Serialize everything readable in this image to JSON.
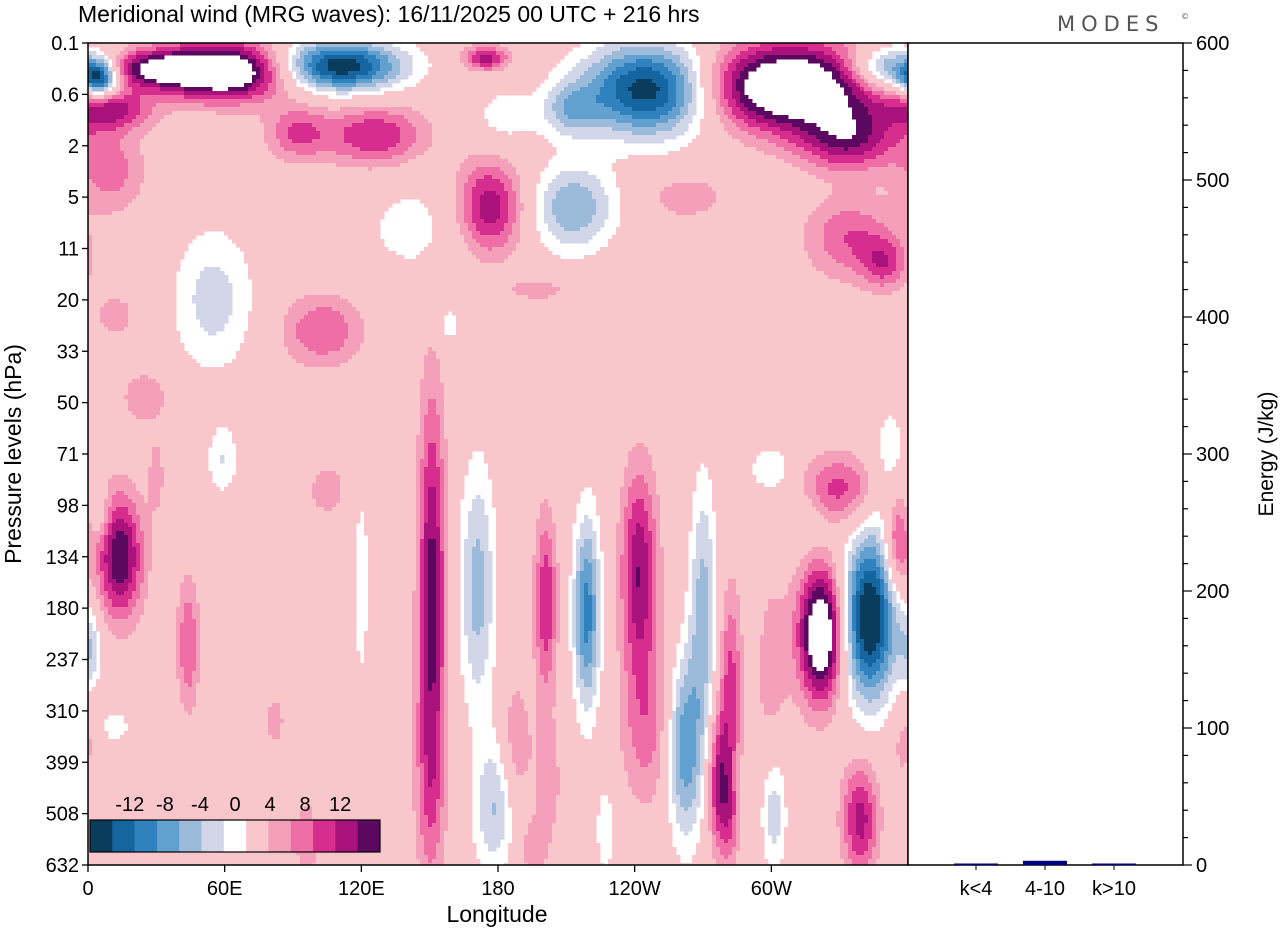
{
  "chart_data": {
    "type": "heatmap",
    "title": "Meridional wind (MRG waves):  16/11/2025  00 UTC  + 216 hrs",
    "logo": "MODES",
    "logo_mark": "©",
    "xlabel": "Longitude",
    "ylabel": "Pressure levels (hPa)",
    "x_ticks": [
      "0",
      "60E",
      "120E",
      "180",
      "120W",
      "60W"
    ],
    "x_tick_values": [
      0,
      60,
      120,
      180,
      240,
      300
    ],
    "xlim": [
      0,
      360
    ],
    "y_ticks": [
      "0.1",
      "0.6",
      "2",
      "5",
      "11",
      "20",
      "33",
      "50",
      "71",
      "98",
      "134",
      "180",
      "237",
      "310",
      "399",
      "508",
      "632"
    ],
    "colorbar": {
      "labels": [
        "-12",
        "-8",
        "-4",
        "0",
        "4",
        "8",
        "12"
      ],
      "label_values": [
        -12,
        -8,
        -4,
        0,
        4,
        8,
        12
      ],
      "levels": [
        -14,
        -12,
        -10,
        -8,
        -6,
        -4,
        -2,
        2,
        4,
        6,
        8,
        10,
        12,
        14
      ],
      "colors": [
        "#0b3c5d",
        "#1565a0",
        "#3082be",
        "#62a0cf",
        "#9cbad9",
        "#d1d6e9",
        "#ffffff",
        "#f9c7cb",
        "#f4a0ba",
        "#ef6ea6",
        "#d62d8e",
        "#a8127a",
        "#5b0860"
      ]
    },
    "energy_axis": {
      "ylabel": "Energy (J/kg)",
      "ylim": [
        0,
        600
      ],
      "ticks": [
        0,
        100,
        200,
        300,
        400,
        500,
        600
      ],
      "categories": [
        "k<4",
        "4-10",
        "k>10"
      ],
      "values": [
        0,
        2,
        0
      ],
      "bar_color": "#000080"
    },
    "blobs": [
      {
        "lon": 5,
        "lev": 0.7,
        "rlon": 8,
        "rlev": 0.35,
        "amp": -14
      },
      {
        "lon": 28,
        "lev": 0.5,
        "rlon": 20,
        "rlev": 0.35,
        "amp": 10
      },
      {
        "lon": 60,
        "lev": 0.55,
        "rlon": 28,
        "rlev": 0.55,
        "amp": 18
      },
      {
        "lon": 110,
        "lev": 0.45,
        "rlon": 28,
        "rlev": 0.5,
        "amp": -16
      },
      {
        "lon": 175,
        "lev": 0.3,
        "rlon": 10,
        "rlev": 0.25,
        "amp": 9
      },
      {
        "lon": 248,
        "lev": 0.9,
        "rlon": 30,
        "rlev": 0.9,
        "amp": -17
      },
      {
        "lon": 307,
        "lev": 0.85,
        "rlon": 42,
        "rlev": 0.85,
        "amp": 18
      },
      {
        "lon": 352,
        "lev": 0.5,
        "rlon": 18,
        "rlev": 0.45,
        "amp": -12
      },
      {
        "lon": 10,
        "lev": 1.3,
        "rlon": 18,
        "rlev": 0.4,
        "amp": 8
      },
      {
        "lon": 92,
        "lev": 1.75,
        "rlon": 14,
        "rlev": 0.55,
        "amp": 6
      },
      {
        "lon": 126,
        "lev": 1.8,
        "rlon": 22,
        "rlev": 0.6,
        "amp": 8
      },
      {
        "lon": 212,
        "lev": 1.3,
        "rlon": 12,
        "rlev": 0.5,
        "amp": -6
      },
      {
        "lon": 182,
        "lev": 1.5,
        "rlon": 15,
        "rlev": 0.7,
        "amp": -3
      },
      {
        "lon": 334,
        "lev": 1.9,
        "rlon": 22,
        "rlev": 0.6,
        "amp": 9
      },
      {
        "lon": 10,
        "lev": 2.5,
        "rlon": 15,
        "rlev": 0.8,
        "amp": 5
      },
      {
        "lon": 176,
        "lev": 3.2,
        "rlon": 15,
        "rlev": 0.95,
        "amp": 10
      },
      {
        "lon": 213,
        "lev": 3.2,
        "rlon": 18,
        "rlev": 0.85,
        "amp": -8
      },
      {
        "lon": 263,
        "lev": 3.0,
        "rlon": 15,
        "rlev": 0.4,
        "amp": 4
      },
      {
        "lon": 146,
        "lev": 3.6,
        "rlon": 28,
        "rlev": 1.0,
        "amp": -3
      },
      {
        "lon": 335,
        "lev": 3.8,
        "rlon": 20,
        "rlev": 0.8,
        "amp": 6
      },
      {
        "lon": 350,
        "lev": 4.3,
        "rlon": 10,
        "rlev": 0.5,
        "amp": 6
      },
      {
        "lon": 55,
        "lev": 5.0,
        "rlon": 18,
        "rlev": 1.4,
        "amp": -5
      },
      {
        "lon": 103,
        "lev": 5.6,
        "rlon": 18,
        "rlev": 0.7,
        "amp": 6
      },
      {
        "lon": 12,
        "lev": 5.3,
        "rlon": 10,
        "rlev": 0.5,
        "amp": 3
      },
      {
        "lon": 198,
        "lev": 4.8,
        "rlon": 16,
        "rlev": 0.25,
        "amp": 3
      },
      {
        "lon": 158,
        "lev": 5.5,
        "rlon": 6,
        "rlev": 0.45,
        "amp": -3
      },
      {
        "lon": 25,
        "lev": 6.9,
        "rlon": 10,
        "rlev": 0.5,
        "amp": 4
      },
      {
        "lon": 59,
        "lev": 8.1,
        "rlon": 7,
        "rlev": 0.7,
        "amp": -4
      },
      {
        "lon": 105,
        "lev": 8.7,
        "rlon": 10,
        "rlev": 0.6,
        "amp": 3
      },
      {
        "lon": 5,
        "lev": 9.2,
        "rlon": 5,
        "rlev": 0.5,
        "amp": -3
      },
      {
        "lon": 14,
        "lev": 10.0,
        "rlon": 10,
        "rlev": 1.2,
        "amp": 12
      },
      {
        "lon": 30,
        "lev": 8.4,
        "rlon": 4,
        "rlev": 0.8,
        "amp": 3
      },
      {
        "lon": 44,
        "lev": 11.7,
        "rlon": 5,
        "rlev": 1.3,
        "amp": 6
      },
      {
        "lon": 82,
        "lev": 13.2,
        "rlon": 5,
        "rlev": 0.6,
        "amp": 3
      },
      {
        "lon": 151,
        "lev": 10.7,
        "rlon": 6,
        "rlev": 3.8,
        "amp": 11
      },
      {
        "lon": 150,
        "lev": 14.5,
        "rlon": 7,
        "rlev": 2.0,
        "amp": 4
      },
      {
        "lon": 120,
        "lev": 10.5,
        "rlon": 4,
        "rlev": 2.5,
        "amp": -3
      },
      {
        "lon": 171,
        "lev": 10.6,
        "rlon": 8,
        "rlev": 2.4,
        "amp": -7
      },
      {
        "lon": 178,
        "lev": 14.9,
        "rlon": 9,
        "rlev": 1.3,
        "amp": -6
      },
      {
        "lon": 188,
        "lev": 13.6,
        "rlon": 6,
        "rlev": 1.2,
        "amp": 4
      },
      {
        "lon": 201,
        "lev": 10.9,
        "rlon": 5,
        "rlev": 1.7,
        "amp": 8
      },
      {
        "lon": 219,
        "lev": 11.1,
        "rlon": 6,
        "rlev": 1.9,
        "amp": -11
      },
      {
        "lon": 202,
        "lev": 14.4,
        "rlon": 7,
        "rlev": 1.4,
        "amp": 3
      },
      {
        "lon": 242,
        "lev": 10.3,
        "rlon": 8,
        "rlev": 2.0,
        "amp": 10
      },
      {
        "lon": 246,
        "lev": 13.3,
        "rlon": 12,
        "rlev": 1.6,
        "amp": 5
      },
      {
        "lon": 270,
        "lev": 11.0,
        "rlon": 6,
        "rlev": 2.5,
        "amp": -7
      },
      {
        "lon": 262,
        "lev": 13.7,
        "rlon": 8,
        "rlev": 1.8,
        "amp": -10
      },
      {
        "lon": 282,
        "lev": 12.6,
        "rlon": 5,
        "rlev": 2.0,
        "amp": 7
      },
      {
        "lon": 277,
        "lev": 14.4,
        "rlon": 5,
        "rlev": 1.3,
        "amp": 9
      },
      {
        "lon": 300,
        "lev": 8.3,
        "rlon": 10,
        "rlev": 0.5,
        "amp": -4
      },
      {
        "lon": 322,
        "lev": 11.5,
        "rlon": 10,
        "rlev": 1.3,
        "amp": 17
      },
      {
        "lon": 343,
        "lev": 11.2,
        "rlon": 12,
        "rlev": 1.6,
        "amp": -17
      },
      {
        "lon": 330,
        "lev": 8.7,
        "rlon": 18,
        "rlev": 0.7,
        "amp": 7
      },
      {
        "lon": 355,
        "lev": 9.7,
        "rlon": 6,
        "rlev": 1.0,
        "amp": 9
      },
      {
        "lon": 316,
        "lev": 9.3,
        "rlon": 10,
        "rlev": 0.6,
        "amp": -3
      },
      {
        "lon": 352,
        "lev": 8.5,
        "rlon": 8,
        "rlev": 1.5,
        "amp": -4
      },
      {
        "lon": 300,
        "lev": 12.5,
        "rlon": 8,
        "rlev": 2.5,
        "amp": 3
      },
      {
        "lon": 282,
        "lev": 15.2,
        "rlon": 4,
        "rlev": 0.9,
        "amp": 4
      },
      {
        "lon": 301,
        "lev": 14.9,
        "rlon": 6,
        "rlev": 1.3,
        "amp": -6
      },
      {
        "lon": 339,
        "lev": 15.1,
        "rlon": 8,
        "rlev": 1.1,
        "amp": 9
      },
      {
        "lon": 358,
        "lev": 13.6,
        "rlon": 6,
        "rlev": 0.8,
        "amp": 3
      },
      {
        "lon": 96,
        "lev": 15.5,
        "rlon": 5,
        "rlev": 0.8,
        "amp": 4
      },
      {
        "lon": 227,
        "lev": 15.3,
        "rlon": 4,
        "rlev": 0.9,
        "amp": -4
      },
      {
        "lon": 195,
        "lev": 15.7,
        "rlon": 6,
        "rlev": 0.6,
        "amp": 3
      },
      {
        "lon": 12,
        "lev": 13.3,
        "rlon": 6,
        "rlev": 0.3,
        "amp": -4
      },
      {
        "lon": 1,
        "lev": 11.8,
        "rlon": 5,
        "rlev": 0.8,
        "amp": -5
      }
    ]
  }
}
